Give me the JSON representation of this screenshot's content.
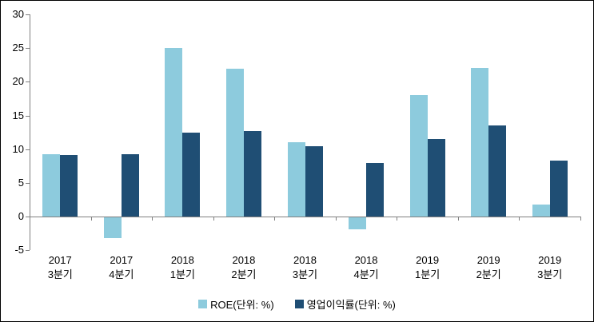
{
  "chart_data": {
    "type": "bar",
    "title": "",
    "xlabel": "",
    "ylabel": "",
    "categories": [
      {
        "year": "2017",
        "quarter": "3분기"
      },
      {
        "year": "2017",
        "quarter": "4분기"
      },
      {
        "year": "2018",
        "quarter": "1분기"
      },
      {
        "year": "2018",
        "quarter": "2분기"
      },
      {
        "year": "2018",
        "quarter": "3분기"
      },
      {
        "year": "2018",
        "quarter": "4분기"
      },
      {
        "year": "2019",
        "quarter": "1분기"
      },
      {
        "year": "2019",
        "quarter": "2분기"
      },
      {
        "year": "2019",
        "quarter": "3분기"
      }
    ],
    "series": [
      {
        "name": "ROE(단위: %)",
        "color": "#8DCBDD",
        "values": [
          9.3,
          -3.1,
          25.0,
          21.9,
          11.0,
          -1.8,
          18.0,
          22.0,
          1.8
        ]
      },
      {
        "name": "영업이익률(단위: %)",
        "color": "#1F4E74",
        "values": [
          9.1,
          9.2,
          12.4,
          12.7,
          10.4,
          8.0,
          11.5,
          13.5,
          8.3
        ]
      }
    ],
    "ylim": [
      -5,
      30
    ],
    "yticks": [
      30,
      25,
      20,
      15,
      10,
      5,
      0,
      -5
    ],
    "grid": false,
    "legend_position": "bottom",
    "axis_color": "#808080",
    "text_color": "#000000",
    "background": "#FFFFFF"
  }
}
